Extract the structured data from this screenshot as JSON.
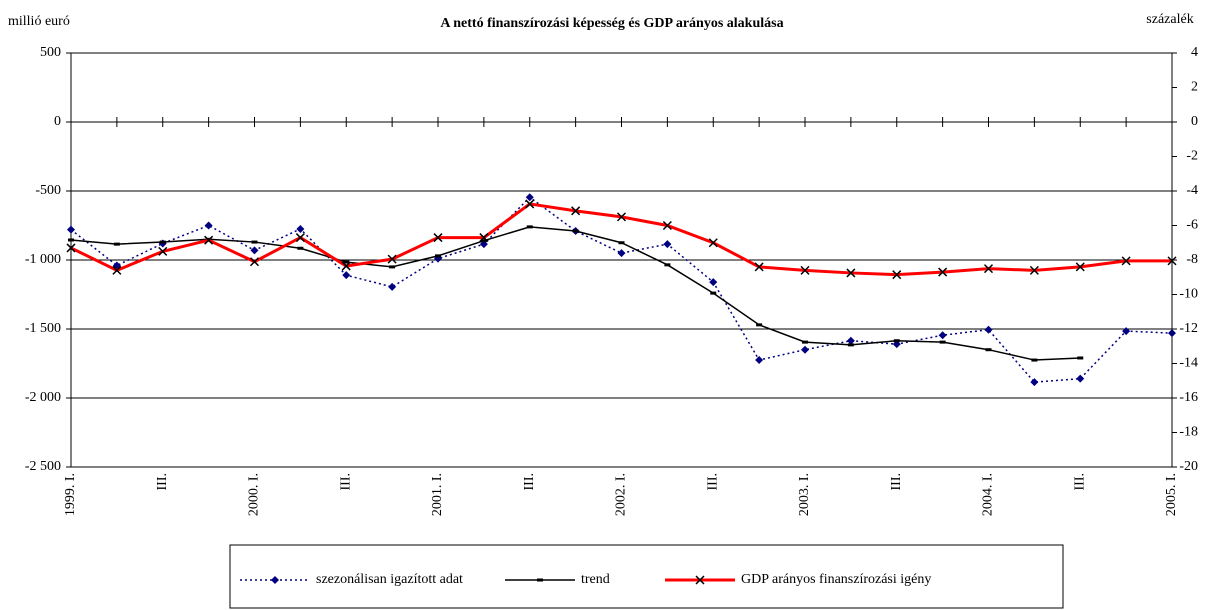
{
  "chart_data": {
    "type": "line",
    "title": "A nettó finanszírozási képesség és GDP arányos alakulása",
    "y_label": "millió euró",
    "y2_label": "százalék",
    "categories": [
      "1999. I.",
      null,
      "III.",
      null,
      "2000. I.",
      null,
      "III.",
      null,
      "2001. I.",
      null,
      "III.",
      null,
      "2002. I.",
      null,
      "III.",
      null,
      "2003. I.",
      null,
      "III.",
      null,
      "2004. I.",
      null,
      "III.",
      null,
      "2005. I."
    ],
    "ylim": [
      -2500,
      500
    ],
    "yticks": [
      {
        "value": -2500,
        "label": "-2 500"
      },
      {
        "value": -2000,
        "label": "-2 000"
      },
      {
        "value": -1500,
        "label": "-1 500"
      },
      {
        "value": -1000,
        "label": "-1 000"
      },
      -500,
      0,
      500
    ],
    "y2lim": [
      -20,
      4
    ],
    "y2ticks": [
      -20,
      -18,
      -16,
      -14,
      -12,
      -10,
      -8,
      -6,
      -4,
      -2,
      0,
      2,
      4
    ],
    "grid": true,
    "legend": "bottom",
    "series": [
      {
        "name": "szezonálisan igazított adat",
        "color": "#000080",
        "line_style": "dotted",
        "marker": "diamond",
        "values": [
          -780,
          -1040,
          -880,
          -750,
          -930,
          -775,
          -1110,
          -1195,
          -990,
          -885,
          -545,
          -790,
          -950,
          -885,
          -1160,
          -1725,
          -1650,
          -1585,
          -1610,
          -1545,
          -1505,
          -1885,
          -1860,
          -1515,
          -1530
        ]
      },
      {
        "name": "trend",
        "color": "#000000",
        "line_style": "solid",
        "marker": "dash",
        "values": [
          -855,
          -885,
          -870,
          -850,
          -870,
          -915,
          -1015,
          -1050,
          -970,
          -860,
          -760,
          -790,
          -875,
          -1035,
          -1240,
          -1470,
          -1595,
          -1615,
          -1585,
          -1595,
          -1650,
          -1725,
          -1710,
          null,
          null
        ]
      },
      {
        "name": "GDP arányos finanszírozási igény",
        "color": "#ff0000",
        "line_style": "thick",
        "marker": "x",
        "axis": "y2",
        "values": [
          -7.3,
          -8.6,
          -7.5,
          -6.85,
          -8.1,
          -6.7,
          -8.35,
          -7.95,
          -6.7,
          -6.7,
          -4.75,
          -5.15,
          -5.5,
          -6.0,
          -7.0,
          -8.4,
          -8.6,
          -8.75,
          -8.85,
          -8.7,
          -8.5,
          -8.6,
          -8.4,
          -8.05,
          -8.05
        ]
      }
    ]
  }
}
